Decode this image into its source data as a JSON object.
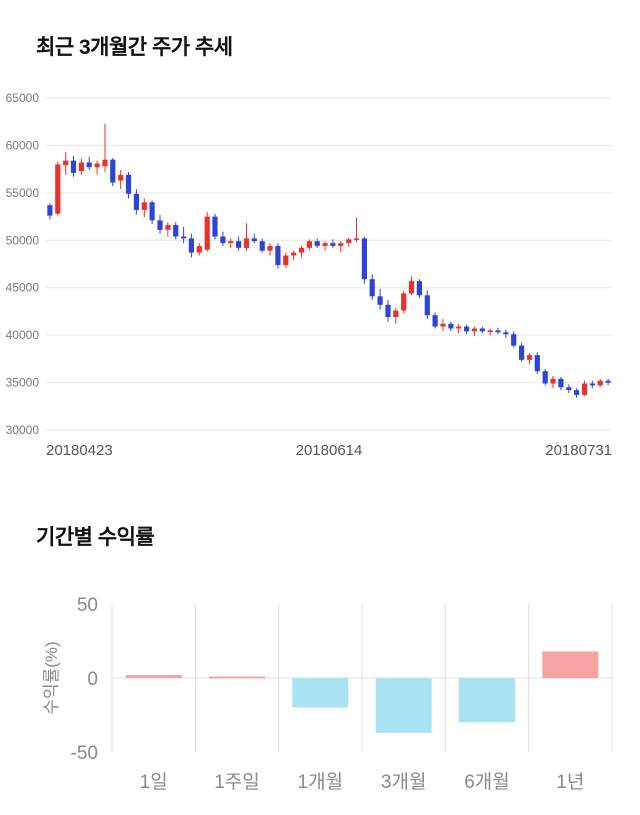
{
  "chart_data": [
    {
      "type": "candlestick",
      "title": "최근 3개월간 주가 추세",
      "ylim": [
        30000,
        65000
      ],
      "y_ticks": [
        30000,
        35000,
        40000,
        45000,
        50000,
        55000,
        60000,
        65000
      ],
      "x_tick_labels": [
        "20180423",
        "20180614",
        "20180731"
      ],
      "up_color": "#e8332d",
      "down_color": "#2e44d8",
      "grid_color": "#e6e6e6",
      "y_tick_color": "#7a7a7a",
      "x_tick_color": "#555555",
      "candles": [
        [
          53700,
          53900,
          52200,
          52600
        ],
        [
          52800,
          58300,
          52600,
          58000
        ],
        [
          57900,
          59300,
          56900,
          58400
        ],
        [
          58400,
          58900,
          56700,
          57100
        ],
        [
          57300,
          58600,
          56900,
          58200
        ],
        [
          58200,
          58800,
          57400,
          57700
        ],
        [
          57700,
          58400,
          56900,
          58100
        ],
        [
          57800,
          62300,
          57200,
          58500
        ],
        [
          58500,
          58700,
          55700,
          56100
        ],
        [
          56300,
          57400,
          55400,
          56900
        ],
        [
          56900,
          57200,
          54400,
          54900
        ],
        [
          54900,
          55400,
          52700,
          53200
        ],
        [
          53200,
          54400,
          52400,
          54000
        ],
        [
          54000,
          54200,
          51700,
          52100
        ],
        [
          52100,
          52700,
          50700,
          51100
        ],
        [
          51100,
          51900,
          50400,
          51600
        ],
        [
          51600,
          51900,
          50100,
          50400
        ],
        [
          50400,
          51400,
          49700,
          50200
        ],
        [
          50200,
          50700,
          48200,
          48700
        ],
        [
          48700,
          49700,
          48400,
          49400
        ],
        [
          49000,
          53000,
          48800,
          52500
        ],
        [
          52500,
          52800,
          50100,
          50400
        ],
        [
          50400,
          50900,
          49400,
          49700
        ],
        [
          49700,
          50200,
          49200,
          49900
        ],
        [
          49900,
          50400,
          48900,
          49200
        ],
        [
          49200,
          51800,
          48900,
          50200
        ],
        [
          50200,
          50700,
          49700,
          49900
        ],
        [
          49900,
          50200,
          48700,
          48900
        ],
        [
          48900,
          49700,
          48400,
          49400
        ],
        [
          49400,
          49700,
          47000,
          47400
        ],
        [
          47400,
          48700,
          47100,
          48400
        ],
        [
          48400,
          48900,
          47900,
          48700
        ],
        [
          48700,
          49400,
          48200,
          49200
        ],
        [
          49200,
          50100,
          48900,
          49900
        ],
        [
          49900,
          50200,
          49200,
          49400
        ],
        [
          49400,
          49900,
          48900,
          49700
        ],
        [
          49700,
          50100,
          49200,
          49400
        ],
        [
          49400,
          49900,
          48700,
          49700
        ],
        [
          49700,
          50300,
          49300,
          50100
        ],
        [
          50100,
          52400,
          49800,
          50200
        ],
        [
          50200,
          50400,
          45400,
          45900
        ],
        [
          45900,
          46400,
          43700,
          44100
        ],
        [
          44100,
          44900,
          42700,
          43200
        ],
        [
          43200,
          43700,
          41400,
          41900
        ],
        [
          41900,
          42900,
          41200,
          42600
        ],
        [
          42600,
          44700,
          42300,
          44400
        ],
        [
          44400,
          46200,
          44200,
          45700
        ],
        [
          45700,
          45900,
          43900,
          44200
        ],
        [
          44200,
          44700,
          41700,
          42100
        ],
        [
          42100,
          42400,
          40700,
          40900
        ],
        [
          40900,
          41700,
          40400,
          41200
        ],
        [
          41200,
          41400,
          40400,
          40700
        ],
        [
          40700,
          41200,
          40200,
          40900
        ],
        [
          40900,
          41100,
          40100,
          40400
        ],
        [
          40400,
          40900,
          39900,
          40700
        ],
        [
          40700,
          40900,
          40200,
          40400
        ],
        [
          40400,
          40700,
          40000,
          40500
        ],
        [
          40500,
          40800,
          40100,
          40300
        ],
        [
          40300,
          40600,
          39700,
          40100
        ],
        [
          40100,
          40400,
          38700,
          38900
        ],
        [
          38900,
          39200,
          37200,
          37400
        ],
        [
          37400,
          38100,
          36900,
          37900
        ],
        [
          37900,
          38200,
          35900,
          36200
        ],
        [
          36200,
          36400,
          34700,
          34900
        ],
        [
          34900,
          35700,
          34400,
          35400
        ],
        [
          35400,
          35600,
          34200,
          34500
        ],
        [
          34500,
          34800,
          33900,
          34200
        ],
        [
          34200,
          34400,
          33400,
          33700
        ],
        [
          33700,
          35200,
          33600,
          34900
        ],
        [
          34900,
          35200,
          34400,
          34700
        ],
        [
          34700,
          35400,
          34500,
          35200
        ],
        [
          35200,
          35400,
          34700,
          35000
        ]
      ]
    },
    {
      "type": "bar",
      "title": "기간별 수익률",
      "ylabel": "수익률(%)",
      "categories": [
        "1일",
        "1주일",
        "1개월",
        "3개월",
        "6개월",
        "1년"
      ],
      "values": [
        2,
        1,
        -20,
        -37,
        -30,
        18
      ],
      "ylim": [
        -50,
        50
      ],
      "y_ticks": [
        50,
        0,
        -50
      ],
      "positive_color": "#f5a3a3",
      "negative_color": "#a9e3f2",
      "grid_color": "#e0e0e0",
      "axis_text_color": "#8a8a8a"
    }
  ]
}
